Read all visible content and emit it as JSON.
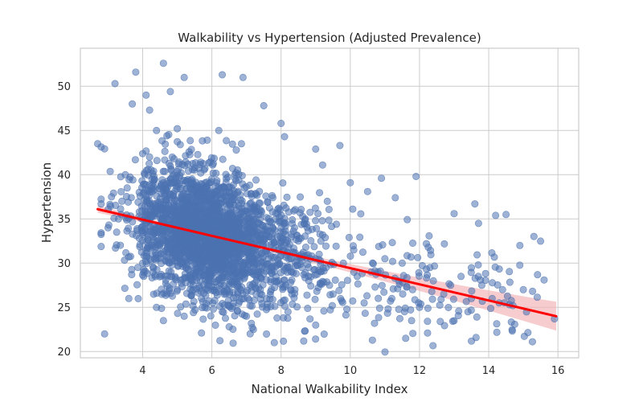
{
  "chart_data": {
    "type": "scatter",
    "title": "Walkability vs Hypertension (Adjusted Prevalence)",
    "xlabel": "National Walkability Index",
    "ylabel": "Hypertension",
    "xlim": [
      2.2,
      16.6
    ],
    "ylim": [
      19.3,
      54.3
    ],
    "xticks": [
      4,
      6,
      8,
      10,
      12,
      14,
      16
    ],
    "yticks": [
      20,
      25,
      30,
      35,
      40,
      45,
      50
    ],
    "grid": true,
    "colors": {
      "points": "#4c72b0",
      "fit_line": "#ff0000",
      "ci_band": "#f4b7bb"
    },
    "series": [
      {
        "kind": "points",
        "x": [
          2.7,
          2.9,
          3.1,
          3.2,
          3.3,
          3.4,
          3.6,
          3.7,
          3.8,
          3.9,
          4.1,
          4.2,
          4.4,
          4.6,
          4.7,
          4.8,
          4.9,
          5.0,
          5.2,
          5.5,
          5.8,
          6.2,
          6.3,
          6.5,
          6.9,
          7.5,
          8.0,
          8.1,
          9.0,
          9.2,
          9.6,
          9.7,
          10.0,
          10.5,
          10.9,
          11.3,
          11.9,
          12.2,
          13.0,
          13.6,
          14.2,
          14.5,
          14.9,
          15.6,
          15.9,
          3.0,
          3.5,
          4.0,
          4.3,
          4.5,
          4.7,
          5.1,
          5.3,
          5.6,
          5.9,
          6.1,
          6.4,
          6.6,
          6.8,
          7.1,
          7.4,
          7.7,
          8.3,
          8.5,
          8.8,
          9.1,
          9.4,
          9.8,
          10.2,
          10.6,
          11.0,
          11.4,
          11.8,
          12.3,
          12.7,
          13.2,
          13.8,
          14.1,
          14.4,
          4.2,
          4.8,
          5.4,
          6.0,
          6.7,
          7.3,
          7.9,
          8.6,
          9.3,
          10.1,
          10.8,
          11.5,
          12.4,
          13.5,
          14.3,
          3.6,
          4.4,
          5.0,
          5.7,
          6.3,
          7.0,
          7.6,
          8.4,
          9.5,
          10.4,
          11.2,
          12.0,
          12.9,
          13.7,
          15.0,
          4.6,
          5.2,
          5.8,
          6.5,
          7.2,
          8.2,
          9.0,
          9.9,
          10.7,
          11.6,
          12.6,
          13.4,
          14.6
        ],
        "y": [
          43.5,
          22.0,
          37.5,
          50.3,
          35.0,
          37.0,
          30.7,
          48.0,
          51.6,
          38.0,
          49.0,
          47.3,
          45.0,
          52.6,
          44.4,
          49.4,
          40.0,
          45.2,
          51.0,
          35.0,
          40.7,
          45.0,
          51.3,
          38.0,
          51.0,
          47.8,
          45.8,
          44.3,
          42.9,
          41.1,
          34.4,
          43.3,
          39.1,
          38.1,
          39.6,
          37.4,
          39.8,
          32.2,
          35.6,
          36.7,
          35.4,
          35.5,
          32.0,
          28.1,
          23.7,
          34.0,
          40.0,
          30.0,
          32.5,
          36.0,
          33.5,
          31.0,
          35.5,
          29.5,
          34.5,
          32.0,
          30.5,
          33.0,
          28.5,
          31.5,
          27.0,
          30.0,
          29.0,
          32.5,
          28.0,
          31.0,
          27.5,
          30.0,
          28.5,
          29.0,
          30.5,
          28.0,
          27.0,
          29.5,
          26.5,
          28.5,
          27.5,
          26.0,
          27.0,
          42.0,
          41.0,
          39.0,
          37.0,
          36.0,
          34.0,
          33.0,
          31.0,
          29.5,
          31.5,
          29.0,
          30.0,
          28.0,
          26.0,
          25.5,
          26.0,
          25.0,
          27.0,
          26.0,
          24.5,
          24.0,
          25.0,
          27.0,
          26.5,
          25.5,
          26.0,
          25.0,
          27.5,
          28.5,
          27.0,
          23.5,
          24.0,
          25.0,
          22.8,
          22.5,
          24.5,
          23.0,
          24.8,
          23.2,
          21.5,
          23.4,
          24.5,
          25.3
        ]
      },
      {
        "kind": "fit_line",
        "x": [
          2.7,
          15.95
        ],
        "y": [
          36.1,
          24.0
        ]
      }
    ]
  }
}
